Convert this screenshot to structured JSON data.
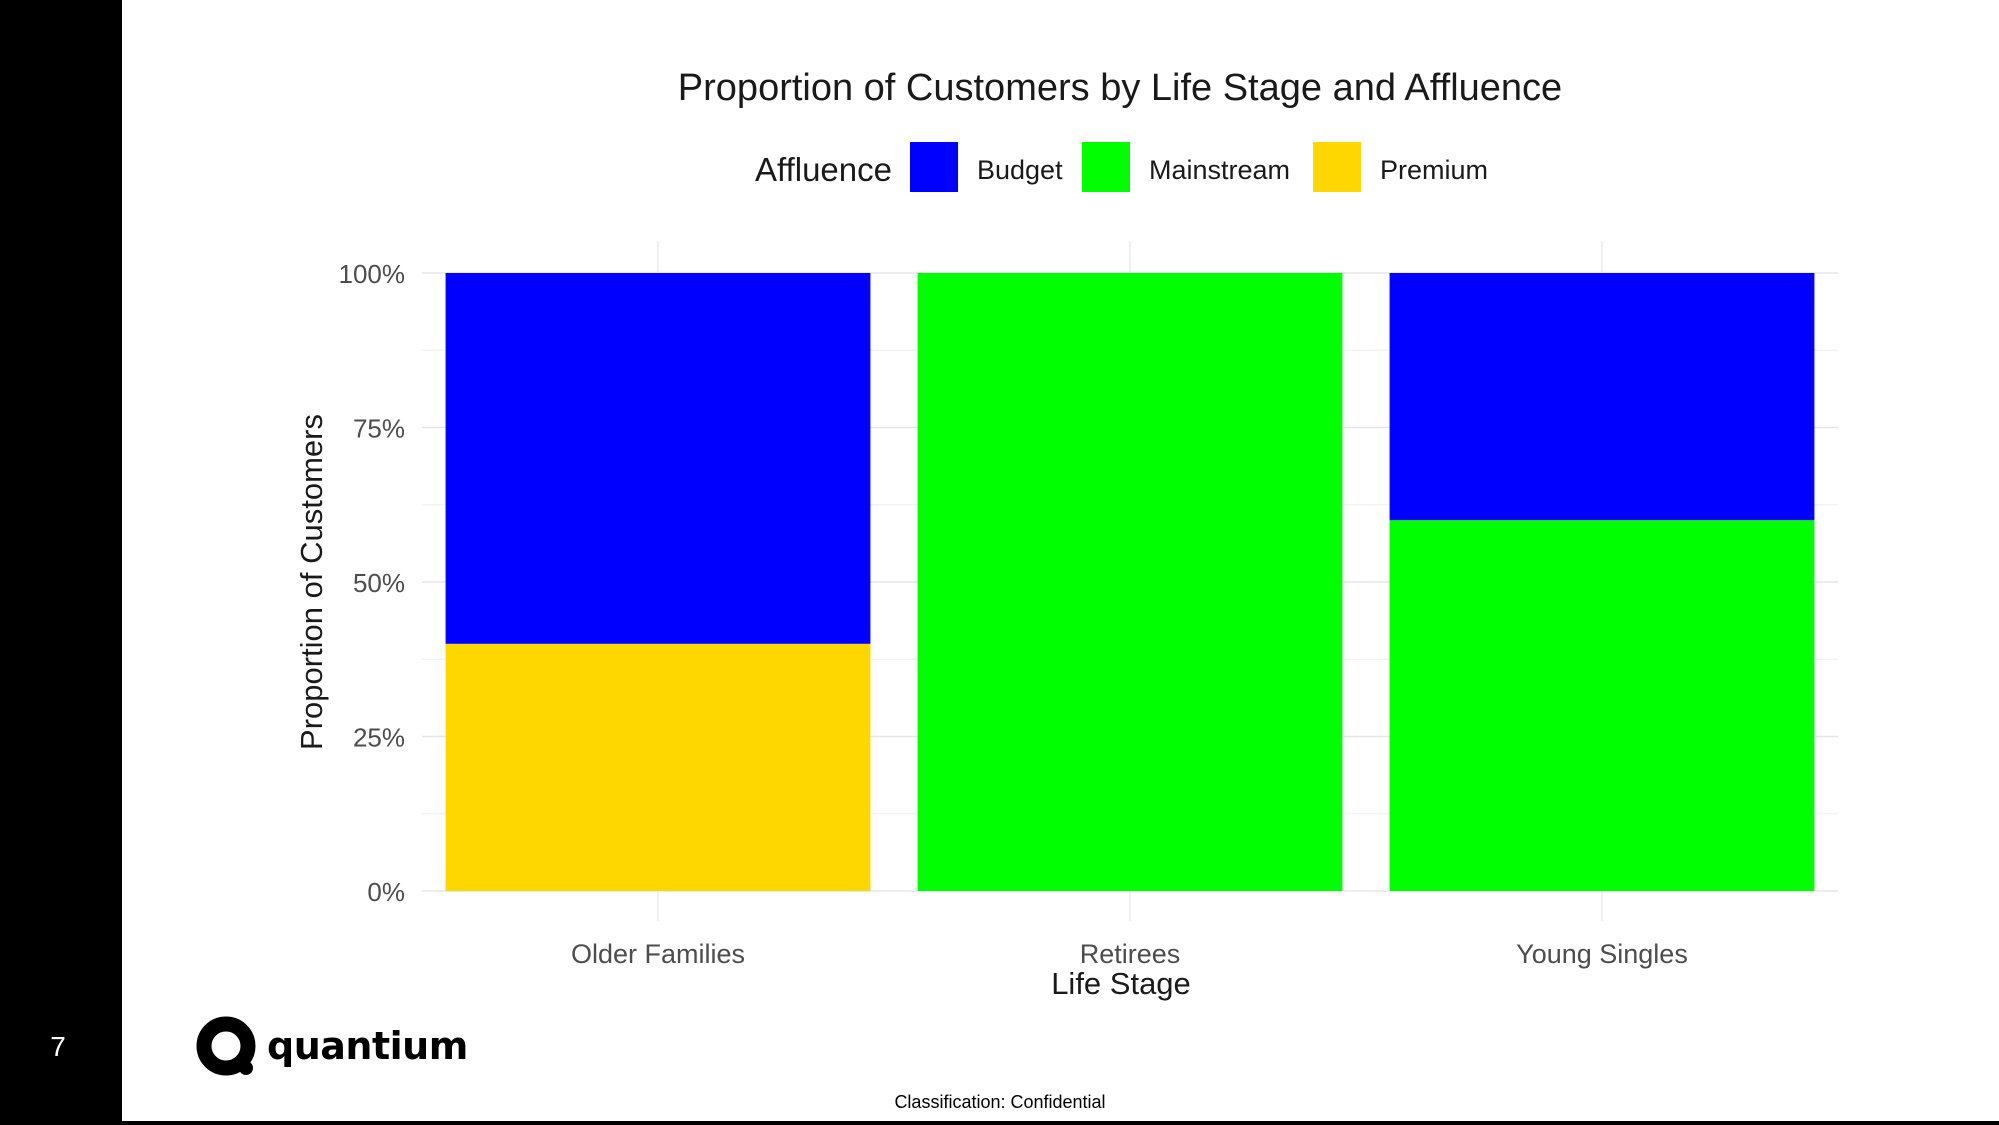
{
  "slide": {
    "number": "7",
    "brand": "quantium",
    "classification": "Classification: Confidential"
  },
  "chart_data": {
    "type": "bar",
    "stacked": true,
    "title": "Proportion of Customers by Life Stage and Affluence",
    "xlabel": "Life Stage",
    "ylabel": "Proportion of Customers",
    "ylim": [
      0,
      1
    ],
    "yticks": [
      "0%",
      "25%",
      "50%",
      "75%",
      "100%"
    ],
    "categories": [
      "Older Families",
      "Retirees",
      "Young Singles"
    ],
    "legend": {
      "title": "Affluence",
      "placement": "top"
    },
    "grid": true,
    "series": [
      {
        "name": "Budget",
        "color": "#0000FF",
        "values": [
          0.6,
          0.0,
          0.4
        ]
      },
      {
        "name": "Mainstream",
        "color": "#00FF00",
        "values": [
          0.0,
          1.0,
          0.6
        ]
      },
      {
        "name": "Premium",
        "color": "#FFD700",
        "values": [
          0.4,
          0.0,
          0.0
        ]
      }
    ]
  }
}
